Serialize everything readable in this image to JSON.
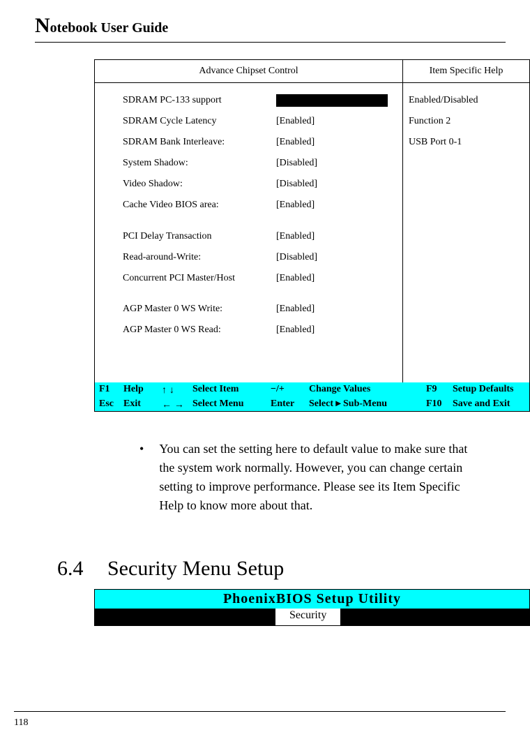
{
  "header": {
    "big_n": "N",
    "rest": "otebook User Guide"
  },
  "bios": {
    "left_title": "Advance Chipset Control",
    "right_title": "Item Specific Help",
    "settings": [
      {
        "label": "SDRAM PC-133 support",
        "value": "BLACKBOX"
      },
      {
        "label": "SDRAM Cycle Latency",
        "value": "[Enabled]"
      },
      {
        "label": "SDRAM Bank Interleave:",
        "value": "[Enabled]"
      },
      {
        "label": "System Shadow:",
        "value": "[Disabled]"
      },
      {
        "label": "Video Shadow:",
        "value": "[Disabled]"
      },
      {
        "label": "Cache Video BIOS area:",
        "value": "[Enabled]"
      },
      {
        "label": "GAP",
        "value": ""
      },
      {
        "label": "PCI Delay Transaction",
        "value": "[Enabled]"
      },
      {
        "label": "Read-around-Write:",
        "value": "[Disabled]"
      },
      {
        "label": "Concurrent PCI Master/Host",
        "value": "[Enabled]"
      },
      {
        "label": "GAP",
        "value": ""
      },
      {
        "label": "AGP Master 0 WS Write:",
        "value": "[Enabled]"
      },
      {
        "label": "AGP Master 0 WS Read:",
        "value": "[Enabled]"
      }
    ],
    "help": [
      "Enabled/Disabled",
      "Function 2",
      "USB Port 0-1"
    ],
    "footer": {
      "row1": {
        "k1": "F1",
        "l1": "Help",
        "a1": "↑ ↓",
        "m1": "Select Item",
        "k2": "−/+",
        "l2": "Change Values",
        "k3": "F9",
        "l3": "Setup Defaults"
      },
      "row2": {
        "k1": "Esc",
        "l1": "Exit",
        "a1": "← →",
        "m1": "Select Menu",
        "k2": "Enter",
        "l2": "Select ▸ Sub-Menu",
        "k3": "F10",
        "l3": "Save and Exit"
      }
    }
  },
  "body": {
    "bullet": "•",
    "text": "You can set the setting here to default value to make sure that the system work normally. However, you can change certain setting to improve performance. Please see its Item Specific Help to know more about that."
  },
  "section": {
    "num": "6.4",
    "title": "Security Menu Setup"
  },
  "phoenix": {
    "title": "PhoenixBIOS Setup Utility",
    "tab": "Security"
  },
  "page_num": "118"
}
